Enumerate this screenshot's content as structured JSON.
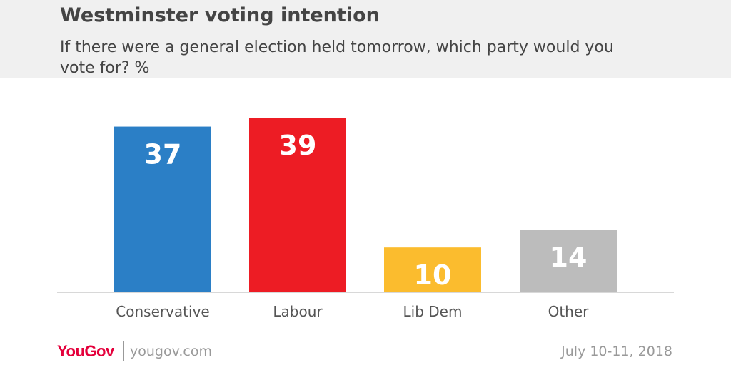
{
  "header": {
    "title": "Westminster voting intention",
    "subtitle": "If there were a general election held tomorrow, which party would you vote for? %"
  },
  "chart_data": {
    "type": "bar",
    "categories": [
      "Conservative",
      "Labour",
      "Lib Dem",
      "Other"
    ],
    "values": [
      37,
      39,
      10,
      14
    ],
    "colors": [
      "#2b7fc6",
      "#ed1c24",
      "#fbbc2e",
      "#bcbcbc"
    ],
    "title": "Westminster voting intention",
    "xlabel": "",
    "ylabel": "",
    "ylim": [
      0,
      39
    ],
    "grid": false,
    "legend": "none"
  },
  "footer": {
    "brand": "YouGov",
    "site": "yougov.com",
    "date": "July 10-11, 2018"
  }
}
